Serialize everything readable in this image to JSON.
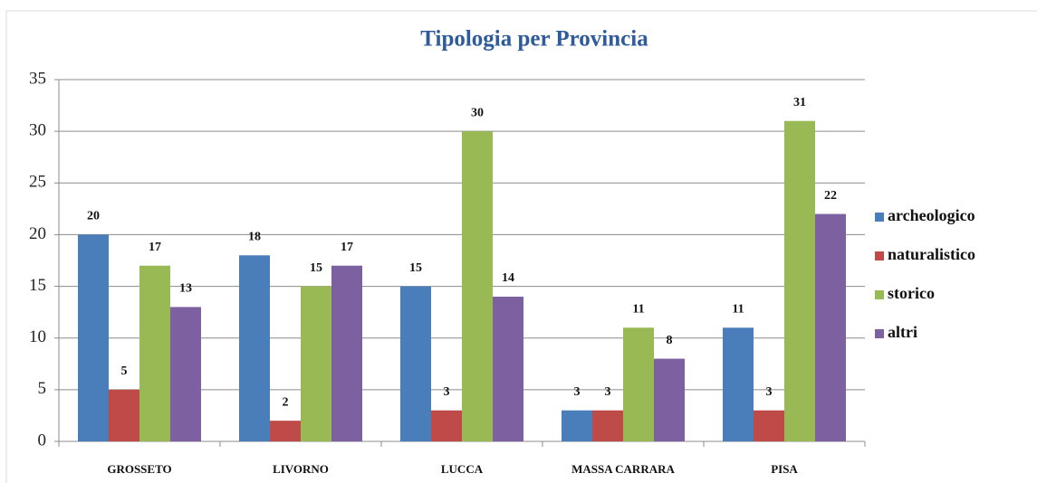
{
  "chart_data": {
    "type": "bar",
    "title": "Tipologia per Provincia",
    "categories": [
      "GROSSETO",
      "LIVORNO",
      "LUCCA",
      "MASSA CARRARA",
      "PISA"
    ],
    "series": [
      {
        "name": "archeologico",
        "color": "#4a7ebb",
        "values": [
          20,
          18,
          15,
          3,
          11
        ]
      },
      {
        "name": "naturalistico",
        "color": "#be4b48",
        "values": [
          5,
          2,
          3,
          3,
          3
        ]
      },
      {
        "name": "storico",
        "color": "#98b954",
        "values": [
          17,
          15,
          30,
          11,
          31
        ]
      },
      {
        "name": "altri",
        "color": "#7d60a0",
        "values": [
          13,
          17,
          14,
          8,
          22
        ]
      }
    ],
    "ylim": [
      0,
      35
    ],
    "yticks": [
      0,
      5,
      10,
      15,
      20,
      25,
      30,
      35
    ],
    "grid": true,
    "legend": "right"
  }
}
